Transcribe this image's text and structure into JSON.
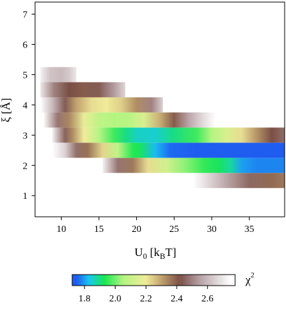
{
  "chart_data": {
    "type": "heatmap",
    "xlabel": "U",
    "xlabel_sub": "0",
    "xlabel_bracket_open": " [k",
    "xlabel_unit_sub": "B",
    "xlabel_bracket_close": "T]",
    "ylabel": "ξ [Å]",
    "colorbar_label": "χ",
    "colorbar_label_sup": "2",
    "xlim": [
      6.5,
      39.7
    ],
    "ylim": [
      0.3,
      7.4
    ],
    "xticks": [
      10,
      15,
      20,
      25,
      30,
      35
    ],
    "yticks": [
      1,
      2,
      3,
      4,
      5,
      6,
      7
    ],
    "colorbar_range": [
      1.72,
      2.78
    ],
    "colorbar_ticks": [
      1.8,
      2.0,
      2.2,
      2.4,
      2.6
    ],
    "colormap": [
      {
        "v": 1.75,
        "color": "#1f5cf0"
      },
      {
        "v": 1.83,
        "color": "#19c8f0"
      },
      {
        "v": 1.93,
        "color": "#19e650"
      },
      {
        "v": 2.05,
        "color": "#b4f582"
      },
      {
        "v": 2.2,
        "color": "#f0eb9a"
      },
      {
        "v": 2.3,
        "color": "#c2a26e"
      },
      {
        "v": 2.42,
        "color": "#7a4f45"
      },
      {
        "v": 2.55,
        "color": "#b7a2a7"
      },
      {
        "v": 2.75,
        "color": "#ffffff"
      }
    ],
    "xi_rows": [
      {
        "xi": 1.5,
        "x0": 27.5,
        "x1": 39.7,
        "values": [
          [
            27.5,
            2.78
          ],
          [
            31,
            2.6
          ],
          [
            35,
            2.46
          ],
          [
            38,
            2.38
          ],
          [
            39.7,
            2.36
          ]
        ]
      },
      {
        "xi": 2.0,
        "x0": 15.5,
        "x1": 39.7,
        "values": [
          [
            15.5,
            2.72
          ],
          [
            17.5,
            2.48
          ],
          [
            19.5,
            2.36
          ],
          [
            21.5,
            2.22
          ],
          [
            24,
            2.12
          ],
          [
            26.5,
            2.02
          ],
          [
            29,
            1.95
          ],
          [
            31,
            1.92
          ],
          [
            32.5,
            1.88
          ],
          [
            34,
            1.8
          ],
          [
            36,
            1.78
          ],
          [
            39.7,
            1.78
          ]
        ]
      },
      {
        "xi": 2.5,
        "x0": 8.8,
        "x1": 39.7,
        "values": [
          [
            8.8,
            2.78
          ],
          [
            10.5,
            2.65
          ],
          [
            12,
            2.47
          ],
          [
            13.5,
            2.37
          ],
          [
            15.5,
            2.23
          ],
          [
            17.5,
            2.08
          ],
          [
            19.5,
            1.94
          ],
          [
            20.5,
            1.92
          ],
          [
            22.5,
            1.82
          ],
          [
            24.5,
            1.76
          ],
          [
            28,
            1.74
          ],
          [
            32,
            1.74
          ],
          [
            39.7,
            1.75
          ]
        ]
      },
      {
        "xi": 3.0,
        "x0": 8.8,
        "x1": 39.7,
        "values": [
          [
            8.8,
            2.72
          ],
          [
            10.5,
            2.45
          ],
          [
            11.5,
            2.33
          ],
          [
            13,
            2.2
          ],
          [
            15,
            2.06
          ],
          [
            17,
            1.96
          ],
          [
            18.5,
            1.9
          ],
          [
            20,
            1.86
          ],
          [
            22.5,
            1.85
          ],
          [
            25,
            1.9
          ],
          [
            28,
            1.96
          ],
          [
            30,
            2.05
          ],
          [
            32,
            2.14
          ],
          [
            34,
            2.22
          ],
          [
            36,
            2.32
          ],
          [
            38,
            2.42
          ],
          [
            39.7,
            2.47
          ]
        ]
      },
      {
        "xi": 3.5,
        "x0": 7.6,
        "x1": 30.5,
        "values": [
          [
            7.6,
            2.75
          ],
          [
            9.5,
            2.48
          ],
          [
            11,
            2.34
          ],
          [
            13,
            2.18
          ],
          [
            15,
            2.08
          ],
          [
            17,
            2.05
          ],
          [
            19,
            2.06
          ],
          [
            21,
            2.14
          ],
          [
            23,
            2.28
          ],
          [
            25,
            2.4
          ],
          [
            27,
            2.56
          ],
          [
            29,
            2.68
          ],
          [
            30.5,
            2.76
          ]
        ]
      },
      {
        "xi": 4.0,
        "x0": 7.2,
        "x1": 23.5,
        "values": [
          [
            7.2,
            2.78
          ],
          [
            8.8,
            2.6
          ],
          [
            10.5,
            2.44
          ],
          [
            12,
            2.3
          ],
          [
            14,
            2.22
          ],
          [
            16,
            2.2
          ],
          [
            18,
            2.24
          ],
          [
            20,
            2.33
          ],
          [
            22,
            2.5
          ],
          [
            23.5,
            2.65
          ]
        ]
      },
      {
        "xi": 4.5,
        "x0": 7.2,
        "x1": 18.5,
        "values": [
          [
            7.2,
            2.7
          ],
          [
            9,
            2.5
          ],
          [
            11,
            2.42
          ],
          [
            13,
            2.4
          ],
          [
            15,
            2.44
          ],
          [
            17,
            2.54
          ],
          [
            18.5,
            2.66
          ]
        ]
      },
      {
        "xi": 5.0,
        "x0": 7.2,
        "x1": 12.0,
        "values": [
          [
            7.2,
            2.72
          ],
          [
            8.5,
            2.62
          ],
          [
            10,
            2.6
          ],
          [
            11,
            2.63
          ],
          [
            12,
            2.7
          ]
        ]
      },
      {
        "xi": 5.5,
        "x0": 8.6,
        "x1": 10.5,
        "values": [
          [
            8.6,
            2.8
          ],
          [
            9.5,
            2.76
          ],
          [
            10.5,
            2.8
          ]
        ]
      }
    ]
  }
}
